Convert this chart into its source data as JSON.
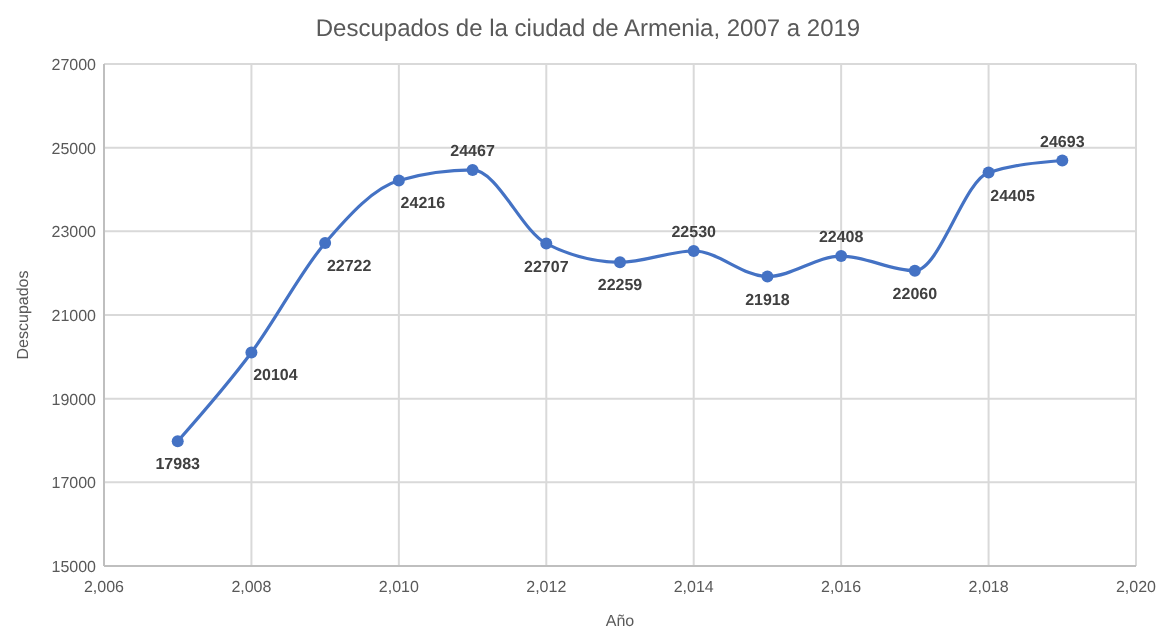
{
  "chart_data": {
    "type": "line",
    "title": "Descupados de la ciudad de Armenia, 2007 a 2019",
    "xlabel": "Año",
    "ylabel": "Descupados",
    "x": [
      2007,
      2008,
      2009,
      2010,
      2011,
      2012,
      2013,
      2014,
      2015,
      2016,
      2017,
      2018,
      2019
    ],
    "series": [
      {
        "color": "#4472c4",
        "values": [
          17983,
          20104,
          22722,
          24216,
          24467,
          22707,
          22259,
          22530,
          21918,
          22408,
          22060,
          24405,
          24693
        ]
      }
    ],
    "xlim": [
      2006,
      2020
    ],
    "xticks": [
      {
        "value": 2006,
        "label": "2,006"
      },
      {
        "value": 2008,
        "label": "2,008"
      },
      {
        "value": 2010,
        "label": "2,010"
      },
      {
        "value": 2012,
        "label": "2,012"
      },
      {
        "value": 2014,
        "label": "2,014"
      },
      {
        "value": 2016,
        "label": "2,016"
      },
      {
        "value": 2018,
        "label": "2,018"
      },
      {
        "value": 2020,
        "label": "2,020"
      }
    ],
    "ylim": [
      15000,
      27000
    ],
    "yticks": [
      15000,
      17000,
      19000,
      21000,
      23000,
      25000,
      27000
    ],
    "grid": true,
    "marker": "circle",
    "line_style": "solid",
    "data_labels": true
  }
}
